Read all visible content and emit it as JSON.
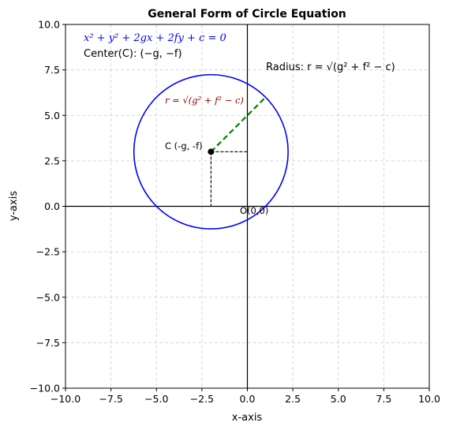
{
  "chart_data": {
    "type": "line",
    "title": "General Form of Circle Equation",
    "xlabel": "x-axis",
    "ylabel": "y-axis",
    "xlim": [
      -10,
      10
    ],
    "ylim": [
      -10,
      10
    ],
    "grid": true,
    "xticks": [
      "−10.0",
      "−7.5",
      "−5.0",
      "−2.5",
      "0.0",
      "2.5",
      "5.0",
      "7.5",
      "10.0"
    ],
    "yticks": [
      "−10.0",
      "−7.5",
      "−5.0",
      "−2.5",
      "0.0",
      "2.5",
      "5.0",
      "7.5",
      "10.0"
    ],
    "circle": {
      "center": [
        -2,
        3
      ],
      "radius": 4.24,
      "color": "#0000ff"
    },
    "center_point": {
      "x": -2,
      "y": 3,
      "label": "C (-g, -f)",
      "color": "#000000"
    },
    "origin_label": "O(0,0)",
    "radius_line": {
      "from": [
        -2,
        3
      ],
      "to": [
        1,
        6
      ],
      "color": "#008000"
    },
    "projection_lines": [
      {
        "from": [
          -2,
          3
        ],
        "to": [
          0,
          3
        ]
      },
      {
        "from": [
          -2,
          3
        ],
        "to": [
          -2,
          0
        ]
      }
    ],
    "annotations": {
      "equation": "x² + y² + 2gx + 2fy + c = 0",
      "equation_color": "#0000ff",
      "center_text": "Center(C): (−g, −f)",
      "radius_text": "Radius: r = √(g² + f² − c)",
      "radius_line_label": "r = √(g² + f² − c)",
      "radius_line_label_color": "#8b0000"
    }
  }
}
